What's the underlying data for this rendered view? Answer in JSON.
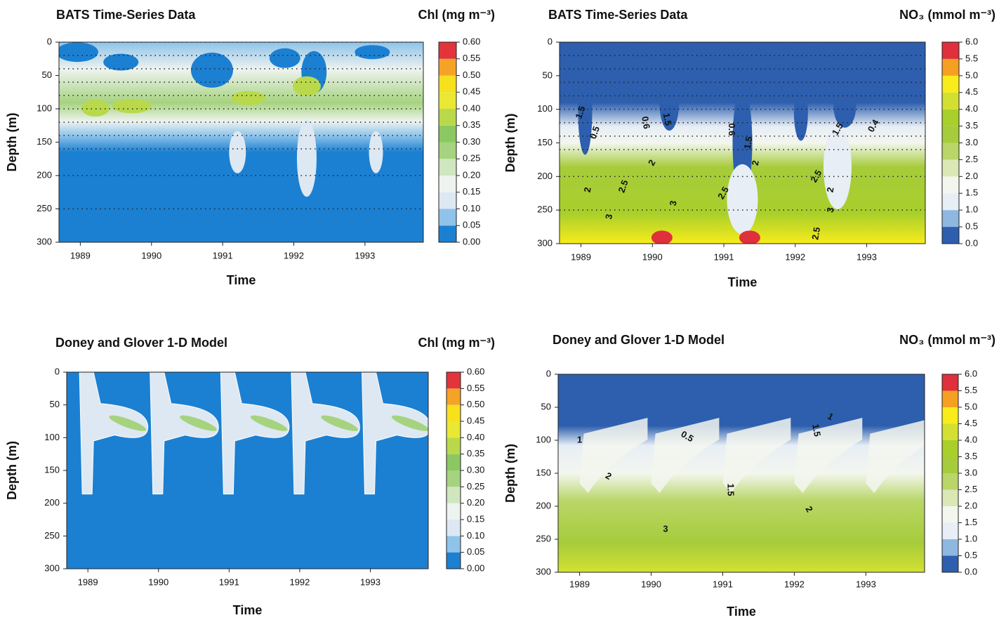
{
  "chart_data": [
    {
      "type": "contour",
      "title": "BATS Time-Series Data",
      "colorbar_label": "Chl (mg m⁻³)",
      "xlabel": "Time",
      "ylabel": "Depth (m)",
      "xlim": [
        1988.7,
        1993.82
      ],
      "xticks": [
        1989,
        1990,
        1991,
        1992,
        1993
      ],
      "ylim": [
        300,
        0
      ],
      "yticks": [
        0,
        50,
        100,
        150,
        200,
        250,
        300
      ],
      "colorbar_lim": [
        0,
        0.6
      ],
      "colorbar_ticks": [
        {
          "value": 0,
          "label": "0.00"
        },
        {
          "value": 0.05,
          "label": "0.05"
        },
        {
          "value": 0.1,
          "label": "0.10"
        },
        {
          "value": 0.15,
          "label": "0.15"
        },
        {
          "value": 0.2,
          "label": "0.20"
        },
        {
          "value": 0.25,
          "label": "0.25"
        },
        {
          "value": 0.3,
          "label": "0.30"
        },
        {
          "value": 0.35,
          "label": "0.35"
        },
        {
          "value": 0.4,
          "label": "0.40"
        },
        {
          "value": 0.45,
          "label": "0.45"
        },
        {
          "value": 0.5,
          "label": "0.50"
        },
        {
          "value": 0.55,
          "label": "0.55"
        },
        {
          "value": 0.6,
          "label": "0.60"
        }
      ],
      "colorbar_colors": [
        "#1b80d2",
        "#8ec3ea",
        "#dde8f2",
        "#eef3ef",
        "#cfe6bf",
        "#a6d37f",
        "#8cc862",
        "#b9d94b",
        "#e9e833",
        "#f7e01c",
        "#f5a326",
        "#e3343c"
      ]
    },
    {
      "type": "contour",
      "title": "BATS Time-Series Data",
      "colorbar_label": "NO₃ (mmol m⁻³)",
      "xlabel": "Time",
      "ylabel": "Depth (m)",
      "xlim": [
        1988.7,
        1993.82
      ],
      "xticks": [
        1989,
        1990,
        1991,
        1992,
        1993
      ],
      "ylim": [
        300,
        0
      ],
      "yticks": [
        0,
        50,
        100,
        150,
        200,
        250,
        300
      ],
      "colorbar_lim": [
        0,
        6
      ],
      "colorbar_ticks": [
        {
          "value": 0,
          "label": "0.0"
        },
        {
          "value": 0.5,
          "label": "0.5"
        },
        {
          "value": 1,
          "label": "1.0"
        },
        {
          "value": 1.5,
          "label": "1.5"
        },
        {
          "value": 2,
          "label": "2.0"
        },
        {
          "value": 2.5,
          "label": "2.5"
        },
        {
          "value": 3,
          "label": "3.0"
        },
        {
          "value": 3.5,
          "label": "3.5"
        },
        {
          "value": 4,
          "label": "4.0"
        },
        {
          "value": 4.5,
          "label": "4.5"
        },
        {
          "value": 5,
          "label": "5.0"
        },
        {
          "value": 5.5,
          "label": "5.5"
        },
        {
          "value": 6,
          "label": "6.0"
        }
      ],
      "colorbar_colors": [
        "#2d5fae",
        "#8fb8e0",
        "#e7eef5",
        "#f3f6ee",
        "#dbe8b5",
        "#b9d667",
        "#a6cc3b",
        "#a9cf2b",
        "#d4e031",
        "#f8ec1b",
        "#f5a021",
        "#df303b"
      ],
      "annotations": [
        "1.5",
        "0.5",
        "0.6",
        "1.5",
        "2",
        "2.5",
        "3",
        "2",
        "3",
        "0.6",
        "1.5",
        "2",
        "2.5",
        "2",
        "1.5",
        "0.4",
        "2.5",
        "3",
        "2.5"
      ]
    },
    {
      "type": "contour",
      "title": "Doney and Glover 1-D Model",
      "colorbar_label": "Chl (mg m⁻³)",
      "xlabel": "Time",
      "ylabel": "Depth (m)",
      "xlim": [
        1988.7,
        1993.82
      ],
      "xticks": [
        1989,
        1990,
        1991,
        1992,
        1993
      ],
      "ylim": [
        300,
        0
      ],
      "yticks": [
        0,
        50,
        100,
        150,
        200,
        250,
        300
      ],
      "colorbar_lim": [
        0,
        0.6
      ],
      "colorbar_ticks": [
        {
          "value": 0,
          "label": "0.00"
        },
        {
          "value": 0.05,
          "label": "0.05"
        },
        {
          "value": 0.1,
          "label": "0.10"
        },
        {
          "value": 0.15,
          "label": "0.15"
        },
        {
          "value": 0.2,
          "label": "0.20"
        },
        {
          "value": 0.25,
          "label": "0.25"
        },
        {
          "value": 0.3,
          "label": "0.30"
        },
        {
          "value": 0.35,
          "label": "0.35"
        },
        {
          "value": 0.4,
          "label": "0.40"
        },
        {
          "value": 0.45,
          "label": "0.45"
        },
        {
          "value": 0.5,
          "label": "0.50"
        },
        {
          "value": 0.55,
          "label": "0.55"
        },
        {
          "value": 0.6,
          "label": "0.60"
        }
      ],
      "colorbar_colors": [
        "#1b80d2",
        "#8ec3ea",
        "#dde8f2",
        "#eef3ef",
        "#cfe6bf",
        "#a6d37f",
        "#8cc862",
        "#b9d94b",
        "#e9e833",
        "#f7e01c",
        "#f5a326",
        "#e3343c"
      ]
    },
    {
      "type": "contour",
      "title": "Doney and Glover 1-D Model",
      "colorbar_label": "NO₃ (mmol m⁻³)",
      "xlabel": "Time",
      "ylabel": "Depth (m)",
      "xlim": [
        1988.7,
        1993.82
      ],
      "xticks": [
        1989,
        1990,
        1991,
        1992,
        1993
      ],
      "ylim": [
        300,
        0
      ],
      "yticks": [
        0,
        50,
        100,
        150,
        200,
        250,
        300
      ],
      "colorbar_lim": [
        0,
        6
      ],
      "colorbar_ticks": [
        {
          "value": 0,
          "label": "0.0"
        },
        {
          "value": 0.5,
          "label": "0.5"
        },
        {
          "value": 1,
          "label": "1.0"
        },
        {
          "value": 1.5,
          "label": "1.5"
        },
        {
          "value": 2,
          "label": "2.0"
        },
        {
          "value": 2.5,
          "label": "2.5"
        },
        {
          "value": 3,
          "label": "3.0"
        },
        {
          "value": 3.5,
          "label": "3.5"
        },
        {
          "value": 4,
          "label": "4.0"
        },
        {
          "value": 4.5,
          "label": "4.5"
        },
        {
          "value": 5,
          "label": "5.0"
        },
        {
          "value": 5.5,
          "label": "5.5"
        },
        {
          "value": 6,
          "label": "6.0"
        }
      ],
      "colorbar_colors": [
        "#2d5fae",
        "#8fb8e0",
        "#e7eef5",
        "#f3f6ee",
        "#dbe8b5",
        "#b9d667",
        "#a6cc3b",
        "#a9cf2b",
        "#d4e031",
        "#f8ec1b",
        "#f5a021",
        "#df303b"
      ],
      "annotations": [
        "1",
        "0.5",
        "1",
        "1.5",
        "2",
        "1.5",
        "2",
        "3"
      ]
    }
  ]
}
